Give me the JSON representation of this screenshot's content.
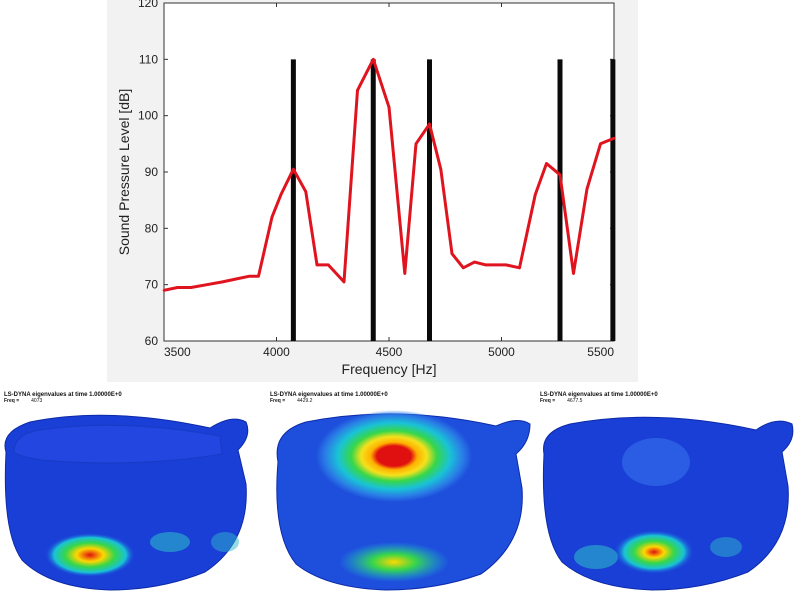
{
  "chart_data": {
    "type": "line",
    "xlabel": "Frequency [Hz]",
    "ylabel": "Sound Pressure Level [dB]",
    "xlim": [
      3500,
      5500
    ],
    "ylim": [
      60,
      120
    ],
    "xticks": [
      3500,
      4000,
      4500,
      5000,
      5500
    ],
    "yticks": [
      60,
      70,
      80,
      90,
      100,
      110,
      120
    ],
    "grid": false,
    "series": [
      {
        "color": "#e0141e",
        "x": [
          3500,
          3560,
          3620,
          3690,
          3760,
          3820,
          3880,
          3920,
          3980,
          4020,
          4075,
          4130,
          4180,
          4230,
          4300,
          4360,
          4430,
          4500,
          4570,
          4620,
          4680,
          4730,
          4780,
          4830,
          4880,
          4930,
          4980,
          5020,
          5080,
          5150,
          5200,
          5260,
          5320,
          5380,
          5440,
          5500
        ],
        "y": [
          69,
          69.5,
          69.5,
          70,
          70.5,
          71,
          71.5,
          71.5,
          82,
          86,
          90.5,
          86.5,
          73.5,
          73.5,
          70.5,
          104.5,
          110,
          101.5,
          72,
          95,
          98.5,
          90.5,
          75.5,
          73,
          74,
          73.5,
          73.5,
          73.5,
          73,
          86,
          91.5,
          89.5,
          72,
          87,
          95,
          96
        ]
      }
    ],
    "mode_lines": {
      "color": "#0a0a0a",
      "x": [
        4075,
        4430,
        4680,
        5260,
        5495
      ],
      "ymin": 60,
      "ymax": 110
    }
  },
  "mode_panels": [
    {
      "title": "LS-DYNA eigenvalues at time 1.00000E+0",
      "freq_label": "Freq =",
      "freq_value": "4073"
    },
    {
      "title": "LS-DYNA eigenvalues at time 1.00000E+0",
      "freq_label": "Freq =",
      "freq_value": "4429.2"
    },
    {
      "title": "LS-DYNA eigenvalues at time 1.00000E+0",
      "freq_label": "Freq =",
      "freq_value": "4677.5"
    }
  ]
}
